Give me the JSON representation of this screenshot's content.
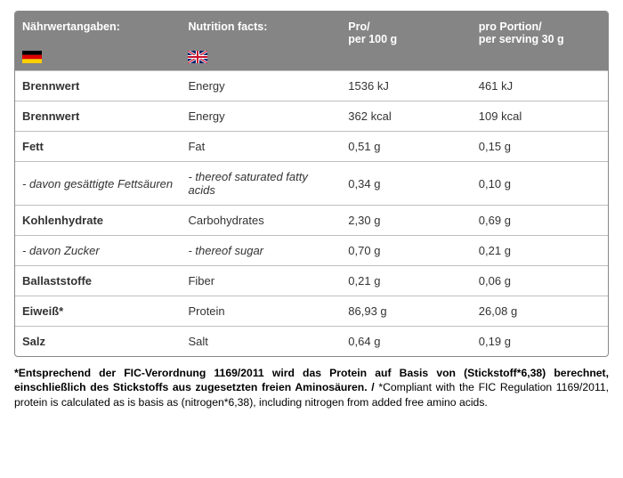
{
  "header": {
    "col_de": "Nährwertangaben:",
    "col_en": "Nutrition facts:",
    "col_100": "Pro/\nper 100 g",
    "col_30": "pro Portion/\nper serving 30 g",
    "bg_color": "#858585",
    "text_color": "#ffffff"
  },
  "flags": {
    "de": {
      "colors": [
        "#000000",
        "#dd0000",
        "#ffce00"
      ]
    },
    "uk": {
      "bg": "#012169",
      "white": "#ffffff",
      "red": "#c8102e"
    }
  },
  "rows": [
    {
      "de": "Brennwert",
      "en": "Energy",
      "p100": "1536 kJ",
      "p30": "461 kJ",
      "italic": false
    },
    {
      "de": "Brennwert",
      "en": "Energy",
      "p100": "362 kcal",
      "p30": "109 kcal",
      "italic": false
    },
    {
      "de": "Fett",
      "en": "Fat",
      "p100": "0,51 g",
      "p30": "0,15 g",
      "italic": false
    },
    {
      "de": "- davon gesättigte Fettsäuren",
      "en": "- thereof saturated fatty acids",
      "p100": "0,34 g",
      "p30": "0,10 g",
      "italic": true
    },
    {
      "de": "Kohlenhydrate",
      "en": "Carbohydrates",
      "p100": "2,30 g",
      "p30": "0,69 g",
      "italic": false
    },
    {
      "de": "- davon Zucker",
      "en": "- thereof sugar",
      "p100": "0,70 g",
      "p30": "0,21 g",
      "italic": true
    },
    {
      "de": "Ballaststoffe",
      "en": "Fiber",
      "p100": "0,21 g",
      "p30": "0,06 g",
      "italic": false
    },
    {
      "de": "Eiweiß*",
      "en": "Protein",
      "p100": "86,93 g",
      "p30": "26,08 g",
      "italic": false
    },
    {
      "de": "Salz",
      "en": "Salt",
      "p100": "0,64  g",
      "p30": "0,19 g",
      "italic": false
    }
  ],
  "footnote": {
    "bold": "*Entsprechend der FIC-Verordnung 1169/2011 wird das Protein auf Basis von (Stickstoff*6,38) berechnet, einschließlich des Stickstoffs aus zugesetzten freien Aminosäuren. / ",
    "rest": "*Compliant with the FIC Regulation 1169/2011, protein is calculated as is basis as (nitrogen*6,38), including nitrogen from added free amino acids."
  },
  "style": {
    "border_color": "#bfbfbf",
    "outer_border": "#888888",
    "font_size_body": 13,
    "font_size_header": 12.5,
    "font_size_footnote": 12.2
  }
}
